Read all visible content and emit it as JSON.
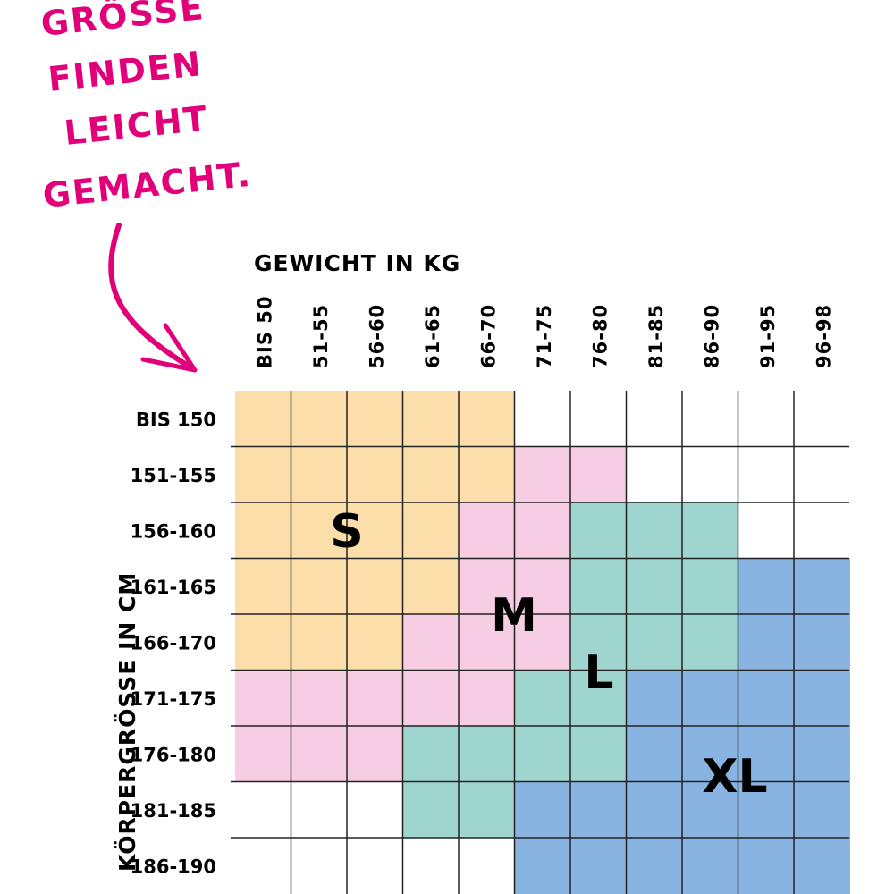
{
  "headline": [
    "GRÖSSE",
    "FINDEN",
    "LEICHT",
    "GEMACHT."
  ],
  "colors": {
    "headline": "#e2007a",
    "S": "#fcdeab",
    "M": "#f7cde3",
    "L": "#9fd5cf",
    "XL": "#89b4e1",
    "none": "#ffffff",
    "grid": "#222222"
  },
  "chart_data": {
    "type": "heatmap",
    "xlabel": "GEWICHT IN KG",
    "ylabel": "KÖRPERGRÖSSE IN CM",
    "x_categories": [
      "BIS 50",
      "51-55",
      "56-60",
      "61-65",
      "66-70",
      "71-75",
      "76-80",
      "81-85",
      "86-90",
      "91-95",
      "96-98"
    ],
    "y_categories": [
      "BIS 150",
      "151-155",
      "156-160",
      "161-165",
      "166-170",
      "171-175",
      "176-180",
      "181-185",
      "186-190"
    ],
    "cells": [
      [
        "S",
        "S",
        "S",
        "S",
        "S",
        "",
        "",
        "",
        "",
        "",
        ""
      ],
      [
        "S",
        "S",
        "S",
        "S",
        "S",
        "M",
        "M",
        "",
        "",
        "",
        ""
      ],
      [
        "S",
        "S",
        "S",
        "S",
        "M",
        "M",
        "L",
        "L",
        "L",
        "",
        ""
      ],
      [
        "S",
        "S",
        "S",
        "S",
        "M",
        "M",
        "L",
        "L",
        "L",
        "XL",
        "XL"
      ],
      [
        "S",
        "S",
        "S",
        "M",
        "M",
        "M",
        "L",
        "L",
        "L",
        "XL",
        "XL"
      ],
      [
        "M",
        "M",
        "M",
        "M",
        "M",
        "L",
        "L",
        "XL",
        "XL",
        "XL",
        "XL"
      ],
      [
        "M",
        "M",
        "M",
        "L",
        "L",
        "L",
        "L",
        "XL",
        "XL",
        "XL",
        "XL"
      ],
      [
        "",
        "",
        "",
        "L",
        "L",
        "XL",
        "XL",
        "XL",
        "XL",
        "XL",
        "XL"
      ],
      [
        "",
        "",
        "",
        "",
        "",
        "XL",
        "XL",
        "XL",
        "XL",
        "XL",
        "XL"
      ]
    ],
    "size_labels": [
      "S",
      "M",
      "L",
      "XL"
    ]
  }
}
